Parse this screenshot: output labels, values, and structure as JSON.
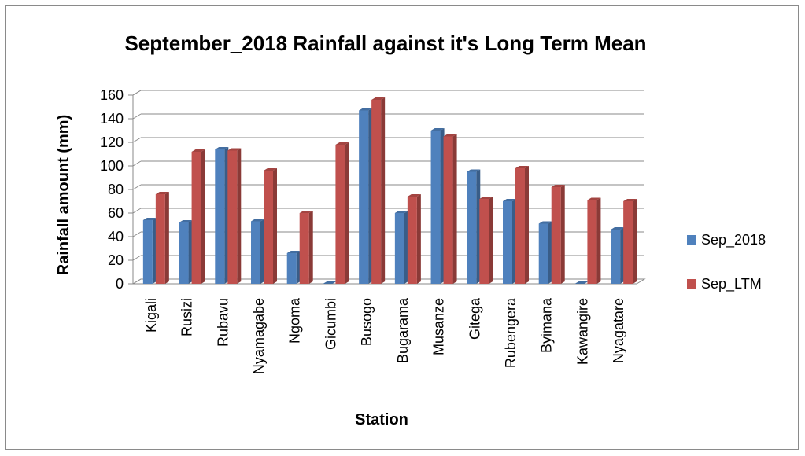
{
  "chart_data": {
    "type": "bar",
    "title": "September_2018 Rainfall against it's Long Term Mean",
    "xlabel": "Station",
    "ylabel": "Rainfall amount (mm)",
    "ylim": [
      0,
      160
    ],
    "yticks": [
      0,
      20,
      40,
      60,
      80,
      100,
      120,
      140,
      160
    ],
    "grid": true,
    "legend_position": "right",
    "categories": [
      "Kigali",
      "Rusizi",
      "Rubavu",
      "Nyamagabe",
      "Ngoma",
      "Gicumbi",
      "Busogo",
      "Bugarama",
      "Musanze",
      "Gitega",
      "Rubengera",
      "Byimana",
      "Kawangire",
      "Nyagatare"
    ],
    "series": [
      {
        "name": "Sep_2018",
        "color": "#4F81BD",
        "values": [
          54,
          52,
          114,
          53,
          26,
          0,
          147,
          60,
          130,
          95,
          70,
          51,
          0,
          46
        ]
      },
      {
        "name": "Sep_LTM",
        "color": "#C0504D",
        "values": [
          76,
          112,
          113,
          96,
          60,
          118,
          156,
          74,
          125,
          72,
          98,
          82,
          71,
          70
        ]
      }
    ]
  }
}
